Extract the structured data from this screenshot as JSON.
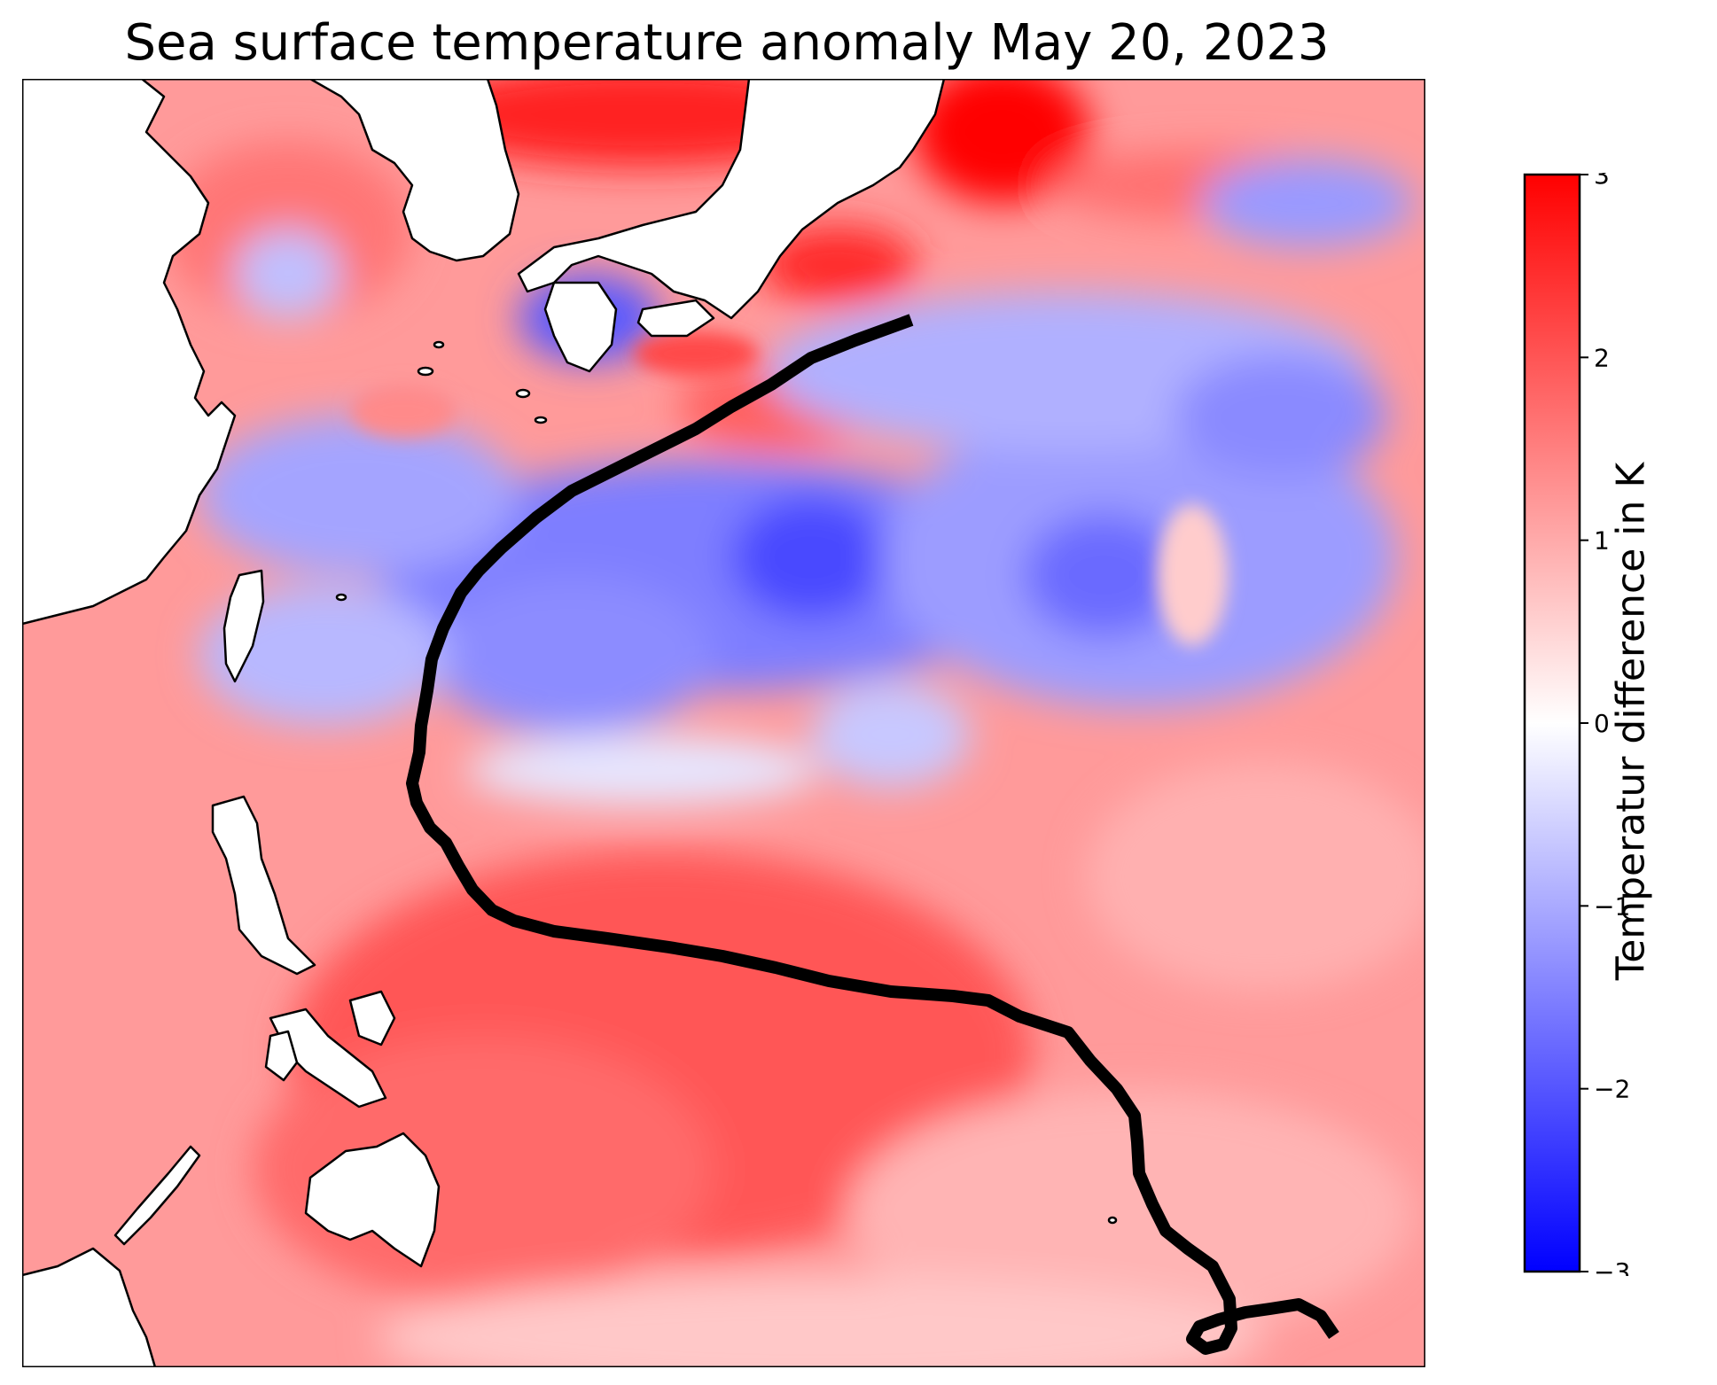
{
  "title": "Sea surface temperature anomaly May 20, 2023",
  "colorbar": {
    "label": "Temperatur difference in K",
    "min": -3,
    "max": 3,
    "ticks": [
      "3",
      "2",
      "1",
      "0",
      "−1",
      "−2",
      "−3"
    ],
    "colors": {
      "low": "#0000ff",
      "mid": "#ffffff",
      "high": "#ff0000"
    }
  },
  "map": {
    "colormap": "bwr",
    "land_color": "#ffffff",
    "coastline_color": "#000000",
    "track_color": "#000000",
    "regions": [
      "Korea",
      "Japan",
      "Taiwan",
      "Philippines",
      "East China",
      "Borneo"
    ]
  }
}
